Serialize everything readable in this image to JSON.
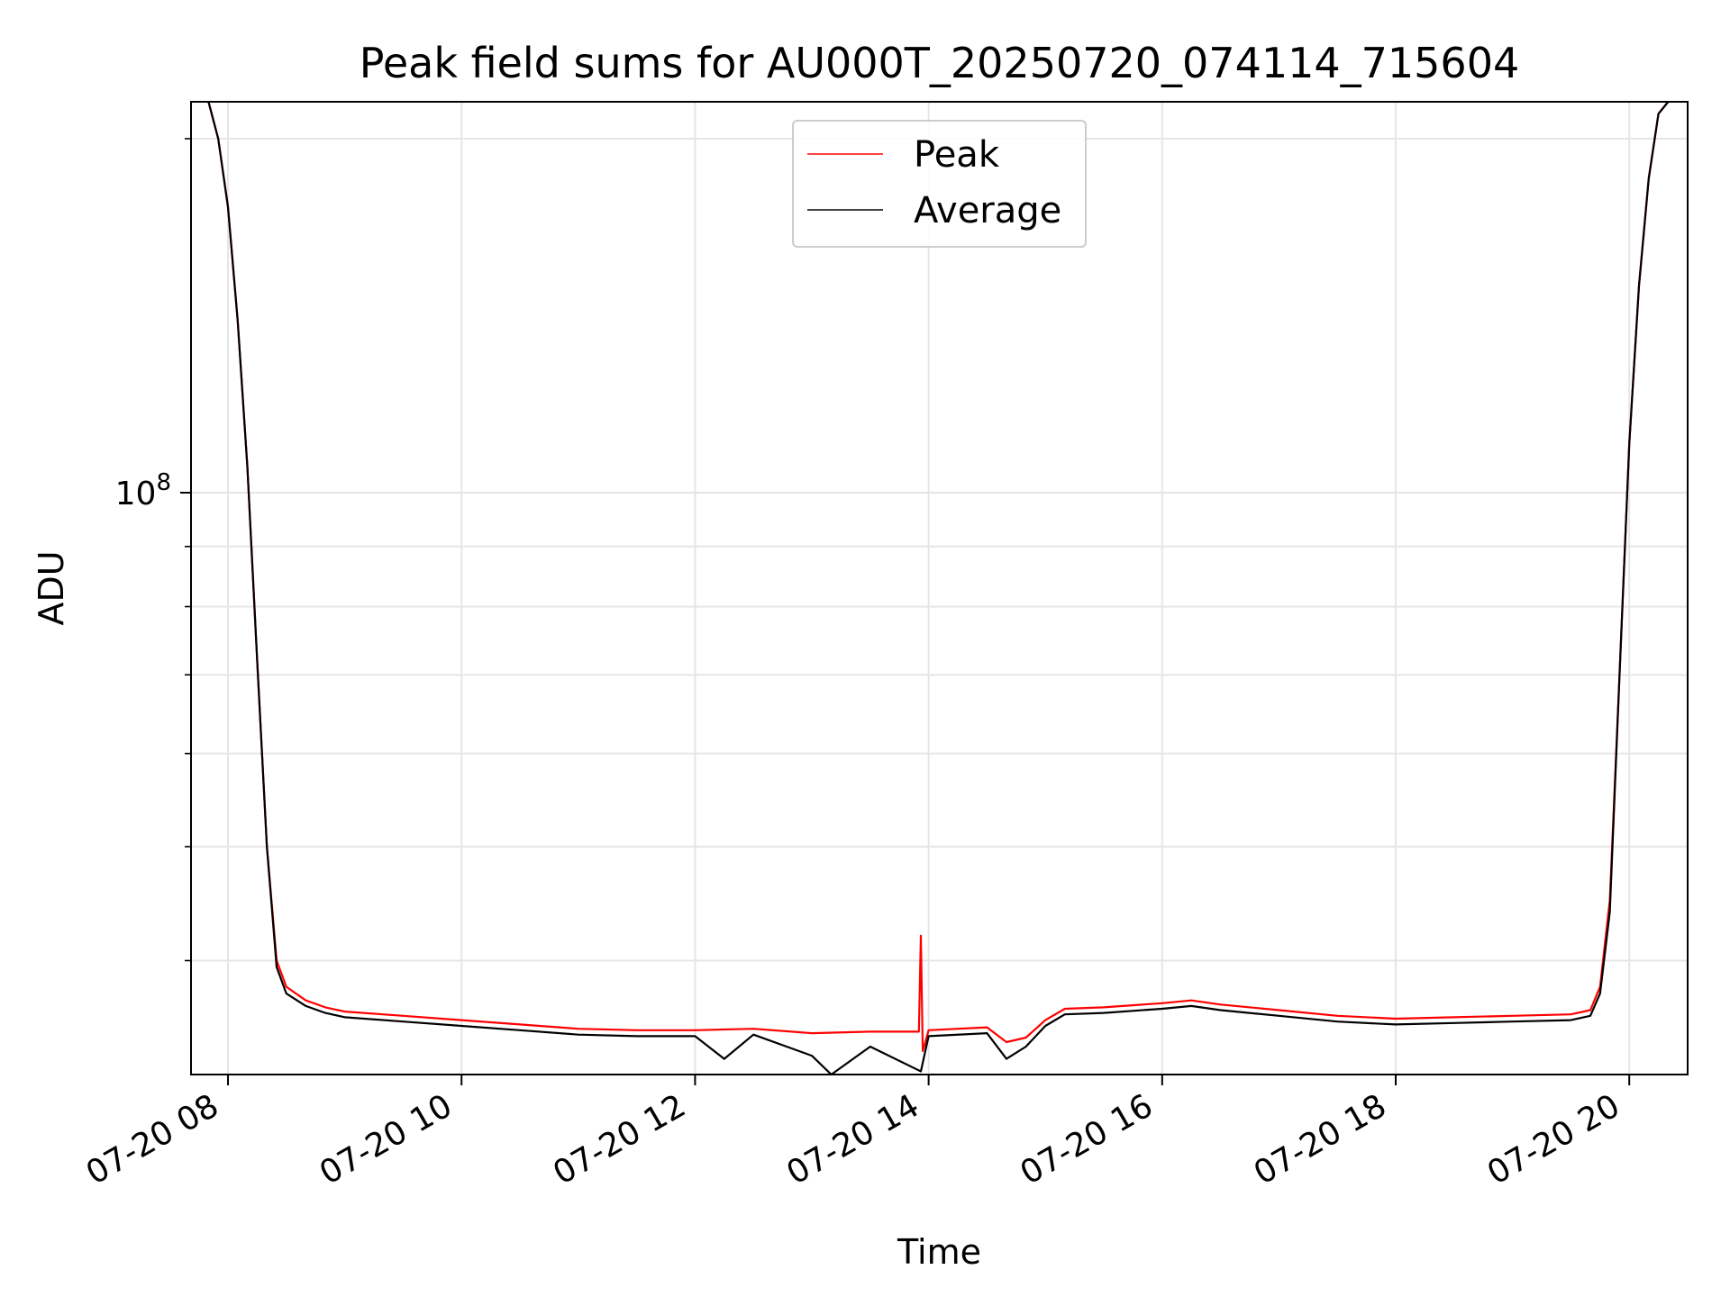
{
  "chart_data": {
    "type": "line",
    "title": "Peak field sums for AU000T_20250720_074114_715604",
    "xlabel": "Time",
    "ylabel": "ADU",
    "y_scale": "log",
    "x_range": [
      "2025-07-20 07:41",
      "2025-07-20 20:30"
    ],
    "ylim": [
      32000000,
      215000000
    ],
    "x_ticks": [
      "07-20 08",
      "07-20 10",
      "07-20 12",
      "07-20 14",
      "07-20 16",
      "07-20 18",
      "07-20 20"
    ],
    "x_tick_hours": [
      8,
      10,
      12,
      14,
      16,
      18,
      20
    ],
    "y_ticks": [
      {
        "value": 100000000,
        "label": "10^8",
        "base": "10",
        "exponent": "8"
      }
    ],
    "y_minor_ticks": [
      40000000,
      50000000,
      60000000,
      70000000,
      80000000,
      90000000,
      200000000
    ],
    "grid": true,
    "legend": {
      "position": "top-center",
      "entries": [
        "Peak",
        "Average"
      ]
    },
    "colors": {
      "Peak": "#ff0000",
      "Average": "#000000",
      "grid": "#e6e6e6"
    },
    "series": [
      {
        "name": "Peak",
        "x": [
          "07:50",
          "07:55",
          "08:00",
          "08:05",
          "08:10",
          "08:15",
          "08:20",
          "08:25",
          "08:30",
          "08:40",
          "08:50",
          "09:00",
          "09:30",
          "10:00",
          "10:30",
          "11:00",
          "11:30",
          "12:00",
          "12:30",
          "13:00",
          "13:30",
          "13:55",
          "13:56",
          "13:57",
          "14:00",
          "14:30",
          "14:40",
          "14:50",
          "15:00",
          "15:10",
          "15:30",
          "16:00",
          "16:15",
          "16:30",
          "17:00",
          "17:30",
          "18:00",
          "18:30",
          "19:00",
          "19:30",
          "19:40",
          "19:45",
          "19:50",
          "19:55",
          "20:00",
          "20:05",
          "20:10",
          "20:15",
          "20:20"
        ],
        "y": [
          215000000,
          200000000,
          175000000,
          140000000,
          105000000,
          72000000,
          50000000,
          40000000,
          38000000,
          37000000,
          36500000,
          36200000,
          35900000,
          35600000,
          35300000,
          35000000,
          34900000,
          34900000,
          35000000,
          34700000,
          34800000,
          34800000,
          42000000,
          33500000,
          34900000,
          35100000,
          34100000,
          34400000,
          35600000,
          36400000,
          36500000,
          36800000,
          37000000,
          36700000,
          36300000,
          35900000,
          35700000,
          35800000,
          35900000,
          36000000,
          36300000,
          38000000,
          45000000,
          70000000,
          110000000,
          150000000,
          185000000,
          210000000,
          215000000
        ]
      },
      {
        "name": "Average",
        "x": [
          "07:50",
          "07:55",
          "08:00",
          "08:05",
          "08:10",
          "08:15",
          "08:20",
          "08:25",
          "08:30",
          "08:40",
          "08:50",
          "09:00",
          "09:30",
          "10:00",
          "10:30",
          "11:00",
          "11:30",
          "12:00",
          "12:15",
          "12:30",
          "13:00",
          "13:10",
          "13:30",
          "13:56",
          "14:00",
          "14:30",
          "14:40",
          "14:50",
          "15:00",
          "15:10",
          "15:30",
          "16:00",
          "16:15",
          "16:30",
          "17:00",
          "17:30",
          "18:00",
          "18:30",
          "19:00",
          "19:30",
          "19:40",
          "19:45",
          "19:50",
          "19:55",
          "20:00",
          "20:05",
          "20:10",
          "20:15",
          "20:20"
        ],
        "y": [
          215000000,
          200000000,
          175000000,
          140000000,
          105000000,
          72000000,
          50000000,
          39500000,
          37500000,
          36600000,
          36100000,
          35800000,
          35500000,
          35200000,
          34900000,
          34600000,
          34500000,
          34500000,
          33000000,
          34600000,
          33200000,
          32000000,
          33800000,
          32200000,
          34500000,
          34700000,
          33000000,
          33800000,
          35200000,
          36000000,
          36100000,
          36400000,
          36600000,
          36300000,
          35900000,
          35500000,
          35300000,
          35400000,
          35500000,
          35600000,
          35900000,
          37500000,
          44000000,
          70000000,
          110000000,
          150000000,
          185000000,
          210000000,
          215000000
        ]
      }
    ]
  }
}
